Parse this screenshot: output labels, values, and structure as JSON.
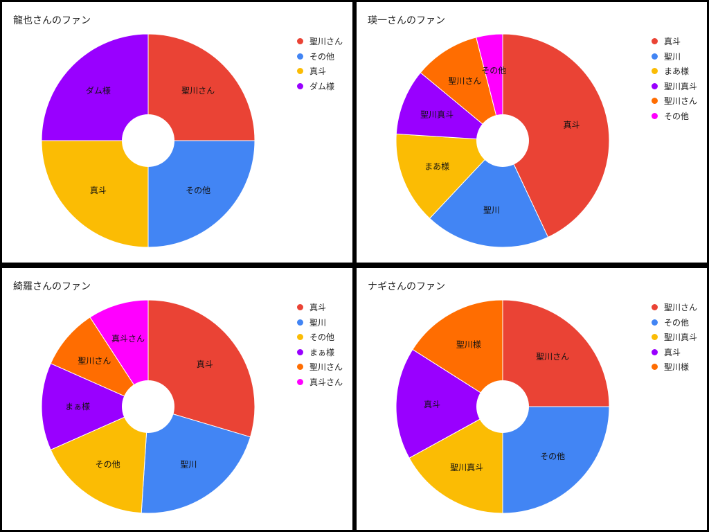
{
  "chart_data": [
    {
      "type": "pie",
      "title": "龍也さんのファン",
      "categories": [
        "聖川さん",
        "その他",
        "真斗",
        "ダム様"
      ],
      "values": [
        25,
        25,
        25,
        25
      ],
      "colors": [
        "#EA4335",
        "#4285F4",
        "#FBBC04",
        "#9900FF"
      ],
      "donut_hole": true,
      "legend_position": "right"
    },
    {
      "type": "pie",
      "title": "瑛一さんのファン",
      "categories": [
        "真斗",
        "聖川",
        "まあ様",
        "聖川真斗",
        "聖川さん",
        "その他"
      ],
      "values": [
        43,
        19,
        14,
        10,
        10,
        4
      ],
      "colors": [
        "#EA4335",
        "#4285F4",
        "#FBBC04",
        "#9900FF",
        "#FF6D01",
        "#FF00FF"
      ],
      "donut_hole": true,
      "legend_position": "right"
    },
    {
      "type": "pie",
      "title": "綺羅さんのファン",
      "categories": [
        "真斗",
        "聖川",
        "その他",
        "まぁ様",
        "聖川さん",
        "真斗さん"
      ],
      "values": [
        29,
        21,
        17,
        13,
        9,
        9
      ],
      "colors": [
        "#EA4335",
        "#4285F4",
        "#FBBC04",
        "#9900FF",
        "#FF6D01",
        "#FF00FF"
      ],
      "donut_hole": true,
      "legend_position": "right"
    },
    {
      "type": "pie",
      "title": "ナギさんのファン",
      "categories": [
        "聖川さん",
        "その他",
        "聖川真斗",
        "真斗",
        "聖川様"
      ],
      "values": [
        25,
        25,
        17,
        17,
        16
      ],
      "colors": [
        "#EA4335",
        "#4285F4",
        "#FBBC04",
        "#9900FF",
        "#FF6D01"
      ],
      "donut_hole": true,
      "legend_position": "right"
    }
  ]
}
